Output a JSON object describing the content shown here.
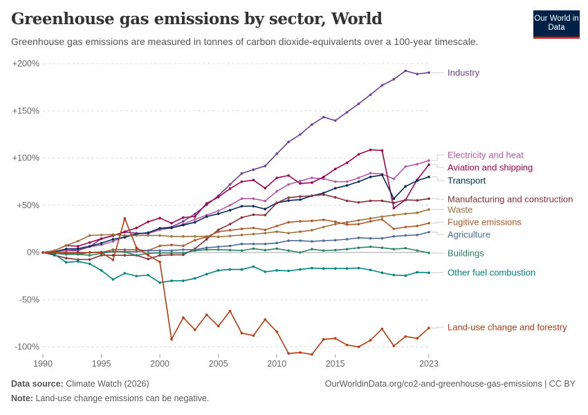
{
  "header": {
    "title": "Greenhouse gas emissions by sector, World",
    "subtitle": "Greenhouse gas emissions are measured in tonnes of carbon dioxide-equivalents over a 100-year timescale.",
    "logo_text": "Our World in Data"
  },
  "footer": {
    "source_label": "Data source:",
    "source_value": "Climate Watch (2026)",
    "url": "OurWorldinData.org/co2-and-greenhouse-gas-emissions | CC BY",
    "note_label": "Note:",
    "note_value": "Land-use change emissions can be negative."
  },
  "chart_data": {
    "type": "line",
    "title": "Greenhouse gas emissions by sector, World",
    "x": [
      1990,
      1991,
      1992,
      1993,
      1994,
      1995,
      1996,
      1997,
      1998,
      1999,
      2000,
      2001,
      2002,
      2003,
      2004,
      2005,
      2006,
      2007,
      2008,
      2009,
      2010,
      2011,
      2012,
      2013,
      2014,
      2015,
      2016,
      2017,
      2018,
      2019,
      2020,
      2021,
      2022,
      2023
    ],
    "xticks": [
      "1990",
      "1995",
      "2000",
      "2005",
      "2010",
      "2015",
      "2023"
    ],
    "xtick_values": [
      1990,
      1995,
      2000,
      2005,
      2010,
      2015,
      2023
    ],
    "ylim": [
      -110,
      205
    ],
    "yticks": [
      200,
      150,
      100,
      50,
      0,
      -50,
      -100
    ],
    "ytick_labels": [
      "+200%",
      "+150%",
      "+100%",
      "+50%",
      "0%",
      "-50%",
      "-100%"
    ],
    "grid": "horizontal dashed",
    "legend": "right (labels at line ends)",
    "series": [
      {
        "name": "Industry",
        "color": "#6d3e91",
        "values": [
          0,
          1,
          2,
          2,
          6,
          14.6,
          18,
          21.5,
          20.5,
          20,
          25.6,
          27,
          33,
          40.8,
          50.5,
          60,
          72,
          83.7,
          87.7,
          91.6,
          104.5,
          117,
          125,
          135.5,
          143.4,
          139.7,
          148.5,
          157.5,
          167,
          177,
          183.4,
          192.4,
          189,
          190.5
        ]
      },
      {
        "name": "Electricity and heat",
        "color": "#b55aa5",
        "values": [
          0,
          1,
          2,
          3.7,
          6,
          8,
          11.7,
          17,
          20,
          20,
          24,
          26,
          30,
          35,
          39.6,
          44,
          50,
          57,
          57,
          54.5,
          64.7,
          72,
          75.7,
          79,
          78,
          75,
          75,
          79,
          84,
          83,
          78,
          91,
          93.5,
          97.4
        ]
      },
      {
        "name": "Aviation and shipping",
        "color": "#a2004f",
        "values": [
          0,
          2,
          7.3,
          6.6,
          10.5,
          14.6,
          17.8,
          22,
          26,
          32.5,
          36.4,
          31,
          37,
          38,
          52,
          58.6,
          67.6,
          75,
          76.7,
          68,
          79,
          81.5,
          73,
          74,
          80,
          88.4,
          95,
          104,
          108.7,
          108,
          47,
          55.7,
          77,
          93
        ]
      },
      {
        "name": "Transport",
        "color": "#00295b",
        "values": [
          0,
          0.7,
          3.7,
          4,
          6.6,
          9.8,
          14,
          16,
          19.5,
          21,
          25.6,
          26,
          29,
          32,
          38,
          41,
          44.7,
          49,
          49,
          46,
          52.5,
          55,
          56,
          60,
          63,
          68,
          71,
          75,
          80,
          82,
          57,
          70,
          76,
          80
        ]
      },
      {
        "name": "Manufacturing and construction",
        "color": "#883039",
        "values": [
          0,
          -3,
          -6,
          -7.5,
          -7.5,
          -3,
          -3,
          -3,
          -3,
          -7,
          -3,
          -2.5,
          -2.5,
          4,
          14,
          24,
          30,
          37,
          40,
          39.6,
          52.5,
          58,
          59.3,
          60,
          61.3,
          58.4,
          54.7,
          53,
          54.7,
          54.7,
          52.5,
          55.7,
          55.2,
          57
        ]
      },
      {
        "name": "Waste",
        "color": "#a2703a",
        "values": [
          0,
          2,
          7.5,
          12,
          18,
          18.5,
          19,
          18,
          18,
          18,
          18,
          17,
          17,
          17,
          17,
          16.5,
          17.5,
          18.5,
          19.5,
          20.5,
          22,
          20.5,
          22,
          23.5,
          27,
          30,
          32,
          34,
          36,
          38,
          39.5,
          41,
          42,
          45.5
        ]
      },
      {
        "name": "Fugitive emissions",
        "color": "#b0582a",
        "values": [
          0,
          -1,
          -2,
          -2,
          0,
          0,
          3,
          3,
          3,
          2,
          7,
          8,
          7,
          13,
          16.5,
          22,
          23.5,
          25,
          26,
          24,
          28,
          32,
          33,
          33.5,
          34.6,
          32.5,
          29.5,
          30,
          33,
          35,
          25,
          27,
          28,
          31
        ]
      },
      {
        "name": "Agriculture",
        "color": "#4c6a9c",
        "values": [
          0,
          0,
          -1,
          -1,
          0,
          0.5,
          1,
          1,
          1,
          2,
          2,
          2,
          3,
          3,
          5,
          6,
          7,
          9,
          9,
          9,
          10,
          12.5,
          12.5,
          11.7,
          12.5,
          13,
          14,
          15.5,
          15,
          15,
          17,
          18,
          18.5,
          21.5
        ]
      },
      {
        "name": "Buildings",
        "color": "#2c8465",
        "values": [
          0,
          -1,
          -2,
          -2,
          -3,
          -1,
          1,
          0.5,
          -3,
          -1,
          -0.5,
          -0.5,
          -0.5,
          2,
          3,
          3,
          2.5,
          2,
          4,
          2.5,
          4,
          2,
          0,
          3.5,
          2,
          2.5,
          3.5,
          5,
          6,
          5,
          3.5,
          4.5,
          2,
          -0.5
        ]
      },
      {
        "name": "Other fuel combustion",
        "color": "#00847e",
        "values": [
          0,
          -2,
          -10.5,
          -9.5,
          -12,
          -19,
          -28.6,
          -22,
          -25,
          -24,
          -32,
          -30,
          -30,
          -27.5,
          -23,
          -19,
          -18,
          -18,
          -15,
          -20.5,
          -19,
          -19.5,
          -18,
          -16.5,
          -17,
          -17,
          -17,
          -16.5,
          -18.5,
          -21.5,
          -24,
          -24.5,
          -21,
          -21.5
        ]
      },
      {
        "name": "Land-use change and forestry",
        "color": "#b83a0e",
        "values": [
          0,
          0,
          0,
          0,
          0,
          0,
          -8,
          36,
          5,
          -3,
          -10,
          -92,
          -69,
          -82,
          -66,
          -78,
          -62,
          -85.5,
          -88,
          -71,
          -84,
          -107,
          -106,
          -108,
          -92,
          -91,
          -98,
          -100,
          -93,
          -81,
          -99,
          -89,
          -91,
          -80
        ]
      }
    ]
  }
}
